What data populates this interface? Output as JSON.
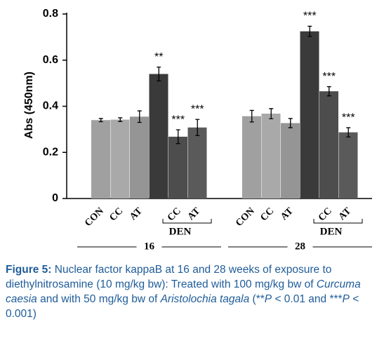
{
  "chart_data": {
    "type": "bar",
    "y_label": "Abs (450nm)",
    "ylim": [
      0,
      0.8
    ],
    "yticks": [
      0,
      0.2,
      0.4,
      0.6,
      0.8
    ],
    "bracket_label": "DEN",
    "colors": [
      "#a0a0a0",
      "#a9a9a9",
      "#959595",
      "#3a3a3a",
      "#4d4d4d",
      "#5a5a5a"
    ],
    "groups": [
      {
        "name": "16",
        "categories": [
          "CON",
          "CC",
          "AT",
          null,
          "CC",
          "AT"
        ],
        "values": [
          0.34,
          0.342,
          0.355,
          0.54,
          0.268,
          0.308
        ],
        "errors": [
          0.007,
          0.008,
          0.025,
          0.03,
          0.03,
          0.035
        ],
        "annotations": [
          null,
          null,
          null,
          "**",
          "***",
          "***"
        ]
      },
      {
        "name": "28",
        "categories": [
          "CON",
          "CC",
          "AT",
          null,
          "CC",
          "AT"
        ],
        "values": [
          0.357,
          0.368,
          0.327,
          0.725,
          0.465,
          0.287
        ],
        "errors": [
          0.025,
          0.022,
          0.02,
          0.022,
          0.02,
          0.02
        ],
        "annotations": [
          null,
          null,
          null,
          "***",
          "***",
          "***"
        ]
      }
    ]
  },
  "caption": {
    "label": "Figure 5:",
    "segments": [
      {
        "text": " Nuclear factor kappaB at 16 and 28 weeks of exposure to diethylnitrosamine (10 mg/kg bw): Treated with 100 mg/kg bw of ",
        "italic": false
      },
      {
        "text": "Curcuma caesia",
        "italic": true
      },
      {
        "text": " and with 50 mg/kg bw of ",
        "italic": false
      },
      {
        "text": "Aristolochia tagala",
        "italic": true
      },
      {
        "text": " (**",
        "italic": false
      },
      {
        "text": "P",
        "italic": true
      },
      {
        "text": " < 0.01 and ***",
        "italic": false
      },
      {
        "text": "P",
        "italic": true
      },
      {
        "text": " < 0.001)",
        "italic": false
      }
    ]
  }
}
